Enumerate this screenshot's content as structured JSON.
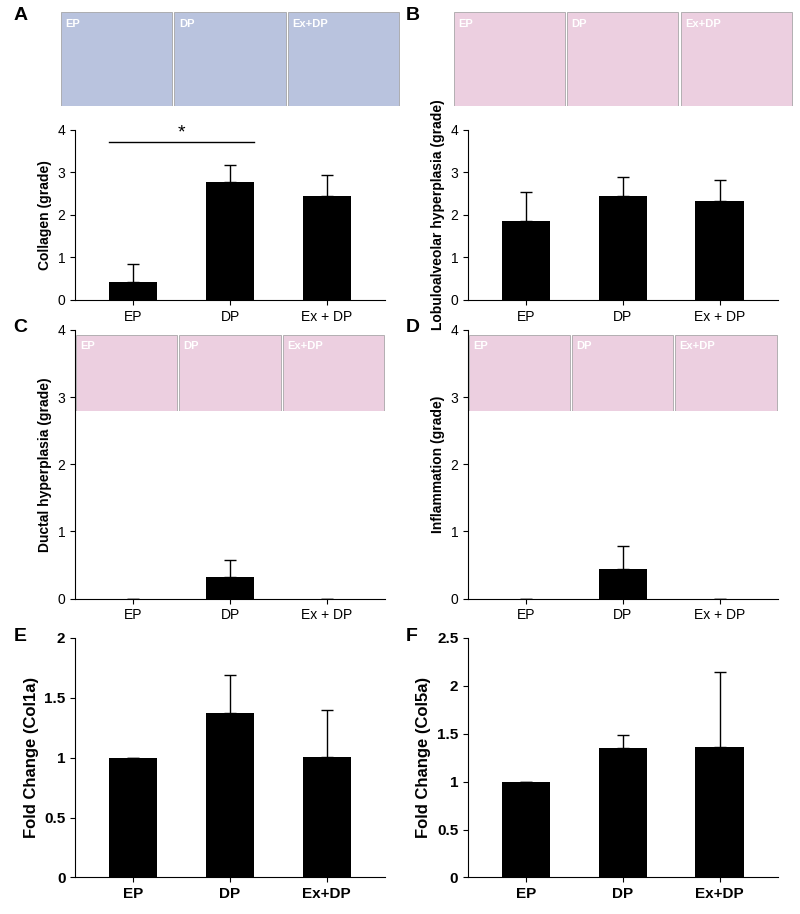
{
  "chart_data": [
    {
      "type": "bar",
      "panel_label": "A",
      "y_label": "Collagen (grade)",
      "categories": [
        "EP",
        "DP",
        "Ex + DP"
      ],
      "values": [
        0.43,
        2.78,
        2.44
      ],
      "error": [
        0.42,
        0.38,
        0.5
      ],
      "color": "#000000",
      "ylim": [
        0,
        4
      ],
      "yticks": [
        0,
        1,
        2,
        3,
        4
      ],
      "image_labels": [
        "EP",
        "DP",
        "Ex+DP"
      ],
      "image_color": "#b9c3de",
      "significance": [
        {
          "from": "EP",
          "to": "DP",
          "label": "*"
        }
      ]
    },
    {
      "type": "bar",
      "panel_label": "B",
      "y_label": "Lobuloalveolar hyperplasia (grade)",
      "categories": [
        "EP",
        "DP",
        "Ex + DP"
      ],
      "values": [
        1.86,
        2.44,
        2.33
      ],
      "error": [
        0.67,
        0.44,
        0.5
      ],
      "color": "#000000",
      "ylim": [
        0,
        4
      ],
      "yticks": [
        0,
        1,
        2,
        3,
        4
      ],
      "image_labels": [
        "EP",
        "DP",
        "Ex+DP"
      ],
      "image_color": "#eccfe0"
    },
    {
      "type": "bar",
      "panel_label": "C",
      "y_label": "Ductal hyperplasia (grade)",
      "categories": [
        "EP",
        "DP",
        "Ex + DP"
      ],
      "values": [
        0,
        0.33,
        0
      ],
      "error": [
        0,
        0.24,
        0
      ],
      "color": "#000000",
      "ylim": [
        0,
        4
      ],
      "yticks": [
        0,
        1,
        2,
        3,
        4
      ],
      "image_labels": [
        "EP",
        "DP",
        "Ex+DP"
      ],
      "image_color": "#eccfe0"
    },
    {
      "type": "bar",
      "panel_label": "D",
      "y_label": "Inflammation (grade)",
      "categories": [
        "EP",
        "DP",
        "Ex + DP"
      ],
      "values": [
        0,
        0.44,
        0
      ],
      "error": [
        0,
        0.34,
        0
      ],
      "color": "#000000",
      "ylim": [
        0,
        4
      ],
      "yticks": [
        0,
        1,
        2,
        3,
        4
      ],
      "image_labels": [
        "EP",
        "DP",
        "Ex+DP"
      ],
      "image_color": "#eccfe0"
    },
    {
      "type": "bar",
      "panel_label": "E",
      "y_label": "Fold Change (Col1a)",
      "categories": [
        "EP",
        "DP",
        "Ex+DP"
      ],
      "values": [
        1,
        1.37,
        1.01
      ],
      "error": [
        0,
        0.32,
        0.39
      ],
      "color": "#000000",
      "ylim": [
        0,
        2
      ],
      "yticks": [
        0,
        0.5,
        1,
        1.5,
        2
      ]
    },
    {
      "type": "bar",
      "panel_label": "F",
      "y_label": "Fold Change (Col5a)",
      "categories": [
        "EP",
        "DP",
        "Ex+DP"
      ],
      "values": [
        1,
        1.35,
        1.36
      ],
      "error": [
        0,
        0.14,
        0.78
      ],
      "color": "#000000",
      "ylim": [
        0,
        2.5
      ],
      "yticks": [
        0,
        0.5,
        1,
        1.5,
        2,
        2.5
      ]
    }
  ]
}
